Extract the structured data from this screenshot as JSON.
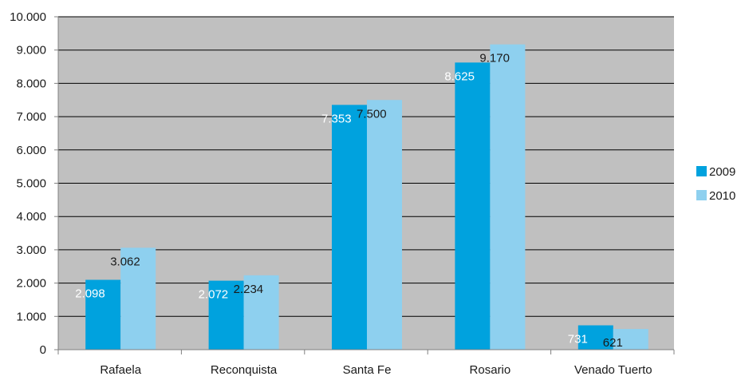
{
  "chart_data": {
    "type": "bar",
    "title": "",
    "xlabel": "",
    "ylabel": "",
    "categories": [
      "Rafaela",
      "Reconquista",
      "Santa Fe",
      "Rosario",
      "Venado Tuerto"
    ],
    "series": [
      {
        "name": "2009",
        "values": [
          2098,
          2072,
          7353,
          8625,
          731
        ],
        "labels": [
          "2.098",
          "2.072",
          "7.353",
          "8.625",
          "731"
        ],
        "color": "#00a2de",
        "label_color": "#ffffff"
      },
      {
        "name": "2010",
        "values": [
          3062,
          2234,
          7500,
          9170,
          621
        ],
        "labels": [
          "3.062",
          "2.234",
          "7.500",
          "9.170",
          "621"
        ],
        "color": "#8ed0ef",
        "label_color": "#1a1a1a"
      }
    ],
    "ylim": [
      0,
      10000
    ],
    "yticks": [
      0,
      1000,
      2000,
      3000,
      4000,
      5000,
      6000,
      7000,
      8000,
      9000,
      10000
    ],
    "ytick_labels": [
      "0",
      "1.000",
      "2.000",
      "3.000",
      "4.000",
      "5.000",
      "6.000",
      "7.000",
      "8.000",
      "9.000",
      "10.000"
    ],
    "grid": true,
    "plot_background": "#c0c0c0",
    "legend_position": "right"
  }
}
